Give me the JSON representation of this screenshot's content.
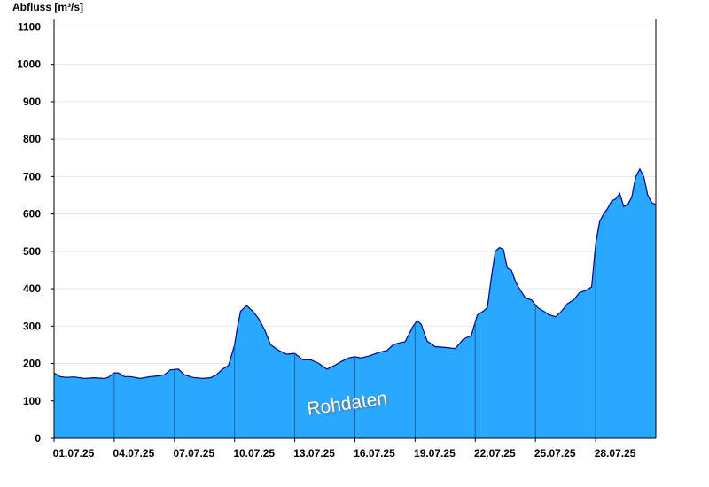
{
  "chart_data": {
    "type": "area",
    "ylabel": "Abfluss [m³/s]",
    "watermark": "Rohdaten",
    "ylim": [
      0,
      1120
    ],
    "xlim": [
      0,
      30
    ],
    "yticks": [
      0,
      100,
      200,
      300,
      400,
      500,
      600,
      700,
      800,
      900,
      1000,
      1100
    ],
    "xticks": [
      {
        "day": 0,
        "label": "01.07.25"
      },
      {
        "day": 3,
        "label": "04.07.25"
      },
      {
        "day": 6,
        "label": "07.07.25"
      },
      {
        "day": 9,
        "label": "10.07.25"
      },
      {
        "day": 12,
        "label": "13.07.25"
      },
      {
        "day": 15,
        "label": "16.07.25"
      },
      {
        "day": 18,
        "label": "19.07.25"
      },
      {
        "day": 21,
        "label": "22.07.25"
      },
      {
        "day": 24,
        "label": "25.07.25"
      },
      {
        "day": 27,
        "label": "28.07.25"
      }
    ],
    "grid": true,
    "colors": {
      "fill": "#29a8ff",
      "line": "#00008b",
      "grid": "#e6e6e6",
      "day_line": "#1f5fa0"
    },
    "series": [
      {
        "x": [
          0,
          0.3,
          0.6,
          1.0,
          1.5,
          2.0,
          2.5,
          2.7,
          3.0,
          3.2,
          3.5,
          3.8,
          4.3,
          4.8,
          5.2,
          5.5,
          5.8,
          6.2,
          6.5,
          6.9,
          7.4,
          7.8,
          8.1,
          8.4,
          8.7,
          9.0,
          9.15,
          9.3,
          9.6,
          9.9,
          10.2,
          10.5,
          10.8,
          11.2,
          11.6,
          12.0,
          12.4,
          12.8,
          13.2,
          13.6,
          14.0,
          14.3,
          14.7,
          15.0,
          15.3,
          15.7,
          16.2,
          16.6,
          16.9,
          17.2,
          17.5,
          17.9,
          18.1,
          18.3,
          18.6,
          19.0,
          19.5,
          20.0,
          20.4,
          20.8,
          21.1,
          21.4,
          21.6,
          21.8,
          22.0,
          22.2,
          22.4,
          22.6,
          22.8,
          23.0,
          23.2,
          23.5,
          23.8,
          24.1,
          24.4,
          24.7,
          25.0,
          25.3,
          25.6,
          25.9,
          26.2,
          26.5,
          26.8,
          27.0,
          27.2,
          27.4,
          27.6,
          27.8,
          28.0,
          28.2,
          28.4,
          28.6,
          28.8,
          29.0,
          29.2,
          29.4,
          29.6,
          29.8,
          30.0
        ],
        "values": [
          175,
          165,
          163,
          164,
          160,
          162,
          160,
          163,
          175,
          175,
          165,
          165,
          160,
          165,
          167,
          170,
          183,
          185,
          170,
          163,
          160,
          162,
          170,
          185,
          195,
          250,
          300,
          340,
          355,
          340,
          320,
          290,
          250,
          235,
          225,
          227,
          210,
          210,
          200,
          185,
          195,
          205,
          215,
          218,
          215,
          220,
          230,
          235,
          250,
          255,
          258,
          300,
          315,
          305,
          260,
          245,
          243,
          240,
          265,
          275,
          330,
          340,
          350,
          430,
          500,
          510,
          505,
          455,
          450,
          420,
          400,
          375,
          370,
          350,
          340,
          330,
          325,
          340,
          360,
          370,
          390,
          395,
          405,
          520,
          580,
          600,
          615,
          635,
          640,
          655,
          620,
          625,
          645,
          700,
          720,
          700,
          650,
          630,
          625
        ]
      }
    ]
  }
}
